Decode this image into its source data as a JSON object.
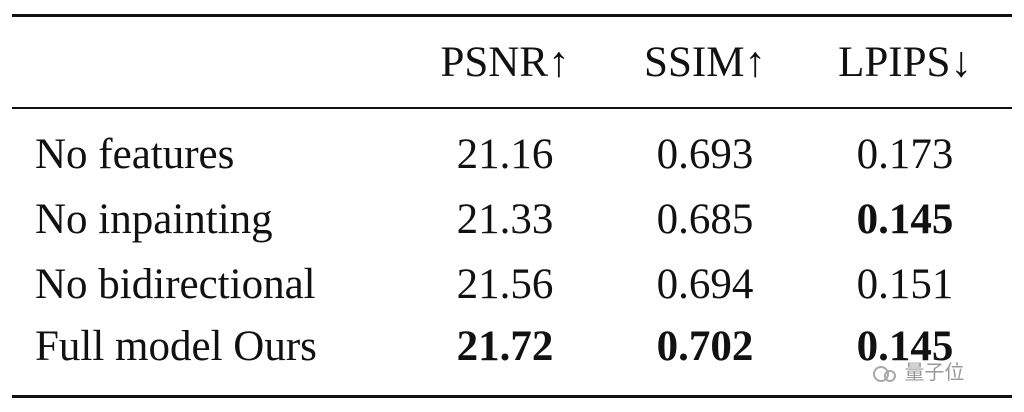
{
  "table": {
    "headers": [
      "PSNR↑",
      "SSIM↑",
      "LPIPS↓"
    ],
    "rows": [
      {
        "label": "No features",
        "cells": [
          {
            "text": "21.16",
            "bold": false
          },
          {
            "text": "0.693",
            "bold": false
          },
          {
            "text": "0.173",
            "bold": false
          }
        ]
      },
      {
        "label": "No inpainting",
        "cells": [
          {
            "text": "21.33",
            "bold": false
          },
          {
            "text": "0.685",
            "bold": false
          },
          {
            "text": "0.145",
            "bold": true
          }
        ]
      },
      {
        "label": "No bidirectional",
        "cells": [
          {
            "text": "21.56",
            "bold": false
          },
          {
            "text": "0.694",
            "bold": false
          },
          {
            "text": "0.151",
            "bold": false
          }
        ]
      },
      {
        "label": "Full model Ours",
        "cells": [
          {
            "text": "21.72",
            "bold": true
          },
          {
            "text": "0.702",
            "bold": true
          },
          {
            "text": "0.145",
            "bold": true
          }
        ]
      }
    ]
  },
  "watermark": "量子位"
}
